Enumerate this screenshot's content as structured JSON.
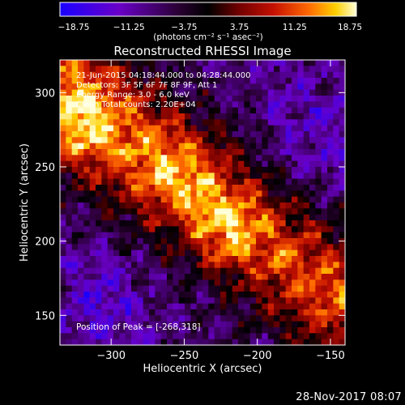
{
  "chart_data": {
    "type": "heatmap",
    "title": "Reconstructed RHESSI Image",
    "xlabel": "Heliocentric X (arcsec)",
    "ylabel": "Heliocentric Y (arcsec)",
    "xlim": [
      -335,
      -140
    ],
    "ylim": [
      130,
      322
    ],
    "xticks": [
      -300,
      -250,
      -200,
      -150
    ],
    "yticks": [
      150,
      200,
      250,
      300
    ],
    "xtick_labels": [
      "−300",
      "−250",
      "−200",
      "−150"
    ],
    "ytick_labels": [
      "150",
      "200",
      "250",
      "300"
    ],
    "colorbar": {
      "range": [
        -18.75,
        18.75
      ],
      "ticks": [
        "−18.75",
        "−11.25",
        "−3.75",
        "3.75",
        "11.25",
        "18.75"
      ],
      "label": "(photons cm⁻² s⁻¹ asec⁻²)",
      "colors": [
        "#1a00ff",
        "#6a00c8",
        "#2a0033",
        "#000000",
        "#6e0000",
        "#c41000",
        "#ff6a00",
        "#ffd000",
        "#ffffd8"
      ]
    },
    "annotations": [
      "21-Jun-2015 04:18:44.000 to 04:28:44.000",
      "Detectors: 3F 5F 6F 7F 8F 9F, Att 1",
      "Energy Range: 3.0 - 6.0 keV",
      "Clean    Total counts: 2.20E+04"
    ],
    "peak_label": "Position of Peak = [-268,318]",
    "peak": [
      -268,
      318
    ]
  },
  "footer": {
    "date": "28-Nov-2017 08:07"
  }
}
